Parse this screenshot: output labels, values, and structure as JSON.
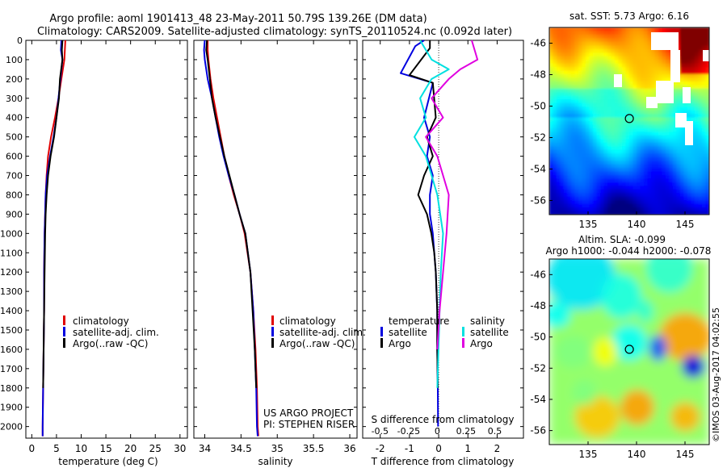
{
  "header": {
    "title_line1": "Argo profile: aoml 1901413_48 23-May-2011 50.79S 139.26E (DM data)",
    "title_line2": "Climatology: CARS2009. Satellite-adjusted climatology: synTS_20110524.nc (0.092d later)"
  },
  "colors": {
    "climatology": "#e00000",
    "satellite": "#0000e0",
    "argo": "#000000",
    "satellite_s": "#00e0e0",
    "argo_s": "#e000e0"
  },
  "depth_axis": {
    "ticks": [
      0,
      100,
      200,
      300,
      400,
      500,
      600,
      700,
      800,
      900,
      1000,
      1100,
      1200,
      1300,
      1400,
      1500,
      1600,
      1700,
      1800,
      1900,
      2000
    ],
    "range": [
      0,
      2060
    ]
  },
  "chart_data": [
    {
      "type": "line",
      "xlabel": "temperature (deg C)",
      "xlim": [
        -1.2,
        31.5
      ],
      "xticks": [
        0,
        5,
        10,
        15,
        20,
        25,
        30
      ],
      "xtick_labels": [
        "0",
        "5",
        "10",
        "15",
        "20",
        "25",
        "30"
      ],
      "legend": [
        "climatology",
        "satellite-adj. clim.",
        "Argo(..raw -QC)"
      ],
      "series": [
        {
          "name": "climatology",
          "color": "#e00000",
          "x": [
            6.8,
            6.7,
            6.6,
            6.0,
            5.4,
            4.7,
            3.9,
            3.3,
            3.0,
            2.8,
            2.7,
            2.6,
            2.5,
            2.5,
            2.4,
            2.3,
            2.2,
            2.2
          ],
          "y": [
            0,
            50,
            100,
            200,
            300,
            400,
            500,
            600,
            700,
            800,
            900,
            1000,
            1200,
            1400,
            1600,
            1800,
            2000,
            2050
          ]
        },
        {
          "name": "satellite-adj. clim.",
          "color": "#0000e0",
          "x": [
            6.0,
            5.9,
            6.2,
            5.8,
            5.4,
            5.0,
            4.4,
            3.7,
            3.1,
            2.8,
            2.7,
            2.6,
            2.5,
            2.5,
            2.4,
            2.3,
            2.2,
            2.2
          ],
          "y": [
            0,
            50,
            100,
            200,
            300,
            400,
            500,
            600,
            700,
            800,
            900,
            1000,
            1200,
            1400,
            1600,
            1800,
            2000,
            2050
          ]
        },
        {
          "name": "Argo(..raw -QC)",
          "color": "#000000",
          "x": [
            6.2,
            6.1,
            6.2,
            5.7,
            5.5,
            5.0,
            4.5,
            3.8,
            3.3,
            3.0,
            2.8,
            2.7,
            2.6,
            2.5,
            2.4,
            2.3
          ],
          "y": [
            0,
            50,
            100,
            200,
            300,
            400,
            500,
            600,
            700,
            800,
            900,
            1000,
            1200,
            1400,
            1600,
            1800
          ]
        }
      ]
    },
    {
      "type": "line",
      "xlabel": "salinity",
      "xlim": [
        33.85,
        36.1
      ],
      "xticks": [
        34,
        34.5,
        35,
        35.5,
        36
      ],
      "xtick_labels": [
        "34",
        "34.5",
        "35",
        "35.5",
        "36"
      ],
      "legend": [
        "climatology",
        "satellite-adj. clim.",
        "Argo(..raw -QC)"
      ],
      "series": [
        {
          "name": "climatology",
          "color": "#e00000",
          "x": [
            34.04,
            34.04,
            34.05,
            34.08,
            34.12,
            34.17,
            34.22,
            34.27,
            34.33,
            34.4,
            34.48,
            34.55,
            34.63,
            34.67,
            34.7,
            34.72,
            34.73,
            34.74
          ],
          "y": [
            0,
            50,
            100,
            200,
            300,
            400,
            500,
            600,
            700,
            800,
            900,
            1000,
            1200,
            1400,
            1600,
            1800,
            2000,
            2050
          ]
        },
        {
          "name": "satellite-adj. clim.",
          "color": "#0000e0",
          "x": [
            34.0,
            33.99,
            34.0,
            34.04,
            34.1,
            34.15,
            34.2,
            34.26,
            34.33,
            34.41,
            34.48,
            34.56,
            34.63,
            34.67,
            34.69,
            34.71,
            34.72,
            34.73
          ],
          "y": [
            0,
            50,
            100,
            200,
            300,
            400,
            500,
            600,
            700,
            800,
            900,
            1000,
            1200,
            1400,
            1600,
            1800,
            2000,
            2050
          ]
        },
        {
          "name": "Argo(..raw -QC)",
          "color": "#000000",
          "x": [
            34.03,
            34.02,
            34.04,
            34.07,
            34.1,
            34.15,
            34.21,
            34.27,
            34.34,
            34.41,
            34.48,
            34.56,
            34.63,
            34.66,
            34.69,
            34.71
          ],
          "y": [
            0,
            50,
            100,
            200,
            300,
            400,
            500,
            600,
            700,
            800,
            900,
            1000,
            1200,
            1400,
            1600,
            1800
          ]
        }
      ],
      "annotation": [
        "US ARGO PROJECT",
        "PI: STEPHEN RISER"
      ]
    },
    {
      "type": "line",
      "xlabel": "T difference from climatology",
      "xlabel2": "S difference from climatology",
      "xlim": [
        -2.6,
        2.9
      ],
      "xticks": [
        -2,
        -1,
        0,
        1,
        2
      ],
      "xtick_labels": [
        "-2",
        "-1",
        "0",
        "1",
        "2"
      ],
      "xticks_s": [
        -0.5,
        -0.25,
        0,
        0.25,
        0.5
      ],
      "xtick_labels_s": [
        "-0.5",
        "-0.25",
        "0",
        "0.25",
        "0.5"
      ],
      "legend_temperature": [
        "temperature",
        "satellite",
        "Argo"
      ],
      "legend_salinity": [
        "salinity",
        "satellite",
        "Argo"
      ],
      "series": [
        {
          "name": "satellite",
          "color": "#0000e0",
          "x": [
            -0.5,
            -0.8,
            -1.3,
            -0.2,
            -0.5,
            -0.3,
            -0.4,
            -0.2,
            -0.3,
            -0.3,
            -0.2,
            -0.15,
            -0.1,
            -0.05,
            -0.05,
            -0.03,
            -0.02
          ],
          "y": [
            0,
            30,
            170,
            220,
            400,
            500,
            600,
            700,
            800,
            900,
            1000,
            1100,
            1200,
            1400,
            1600,
            1800,
            2000
          ]
        },
        {
          "name": "Argo",
          "color": "#000000",
          "x": [
            -0.3,
            -0.3,
            -1.0,
            -0.2,
            -0.1,
            -0.4,
            -0.2,
            -0.5,
            -0.7,
            -0.4,
            -0.25,
            -0.15,
            -0.1,
            -0.05,
            -0.05,
            -0.03
          ],
          "y": [
            0,
            40,
            180,
            220,
            400,
            500,
            600,
            700,
            800,
            900,
            1000,
            1100,
            1200,
            1400,
            1600,
            1800
          ]
        },
        {
          "name": "satellite",
          "color": "#00e0e0",
          "x": [
            -0.15,
            -0.05,
            0.1,
            -0.05,
            -0.15,
            -0.1,
            -0.2,
            -0.1,
            -0.05,
            0.0,
            0.05,
            0.03,
            0.02,
            0.01,
            0.0
          ],
          "y": [
            0,
            100,
            150,
            200,
            300,
            400,
            500,
            600,
            700,
            800,
            1000,
            1200,
            1400,
            1600,
            1800
          ]
        },
        {
          "name": "Argo",
          "color": "#e000e0",
          "x": [
            0.3,
            0.35,
            0.2,
            0.1,
            -0.05,
            0.05,
            -0.1,
            0.0,
            0.05,
            0.1,
            0.08,
            0.05,
            0.02,
            0.0
          ],
          "y": [
            0,
            100,
            150,
            200,
            300,
            400,
            500,
            600,
            700,
            800,
            1000,
            1200,
            1400,
            1600
          ]
        }
      ]
    },
    {
      "type": "heatmap",
      "title": "sat. SST: 5.73 Argo: 6.16",
      "xticks": [
        135,
        140,
        145
      ],
      "yticks": [
        -46,
        -48,
        -50,
        -52,
        -54,
        -56
      ],
      "ytick_labels": [
        "-46",
        "-48",
        "-50",
        "-52",
        "-54",
        "-56"
      ],
      "xlim": [
        131,
        147.5
      ],
      "ylim": [
        -56.9,
        -45.0
      ],
      "marker": {
        "lon": 139.26,
        "lat": -50.79
      }
    },
    {
      "type": "heatmap",
      "title": "Altim. SLA: -0.099",
      "subtitle": "Argo h1000: -0.044 h2000: -0.078",
      "xticks": [
        135,
        140,
        145
      ],
      "yticks": [
        -46,
        -48,
        -50,
        -52,
        -54,
        -56
      ],
      "ytick_labels": [
        "-46",
        "-48",
        "-50",
        "-52",
        "-54",
        "-56"
      ],
      "xlim": [
        131,
        147.5
      ],
      "ylim": [
        -56.9,
        -45.0
      ],
      "marker": {
        "lon": 139.26,
        "lat": -50.79
      }
    }
  ],
  "watermark": "©IMOS 03-Aug-2017 04:02:55"
}
